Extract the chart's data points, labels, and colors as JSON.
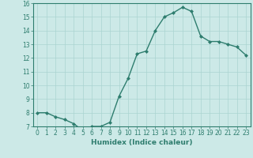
{
  "x": [
    0,
    1,
    2,
    3,
    4,
    5,
    6,
    7,
    8,
    9,
    10,
    11,
    12,
    13,
    14,
    15,
    16,
    17,
    18,
    19,
    20,
    21,
    22,
    23
  ],
  "y": [
    8.0,
    8.0,
    7.7,
    7.5,
    7.2,
    6.7,
    7.0,
    7.0,
    7.3,
    9.2,
    10.5,
    12.3,
    12.5,
    14.0,
    15.0,
    15.3,
    15.7,
    15.4,
    13.6,
    13.2,
    13.2,
    13.0,
    12.8,
    12.2
  ],
  "line_color": "#2e7d6e",
  "marker": "D",
  "marker_size": 2.0,
  "bg_color": "#cce9e7",
  "grid_color": "#aad4d1",
  "xlabel": "Humidex (Indice chaleur)",
  "xlim": [
    -0.5,
    23.5
  ],
  "ylim": [
    7,
    16
  ],
  "yticks": [
    7,
    8,
    9,
    10,
    11,
    12,
    13,
    14,
    15,
    16
  ],
  "xticks": [
    0,
    1,
    2,
    3,
    4,
    5,
    6,
    7,
    8,
    9,
    10,
    11,
    12,
    13,
    14,
    15,
    16,
    17,
    18,
    19,
    20,
    21,
    22,
    23
  ],
  "tick_label_size": 5.5,
  "xlabel_size": 6.5,
  "line_width": 1.0
}
